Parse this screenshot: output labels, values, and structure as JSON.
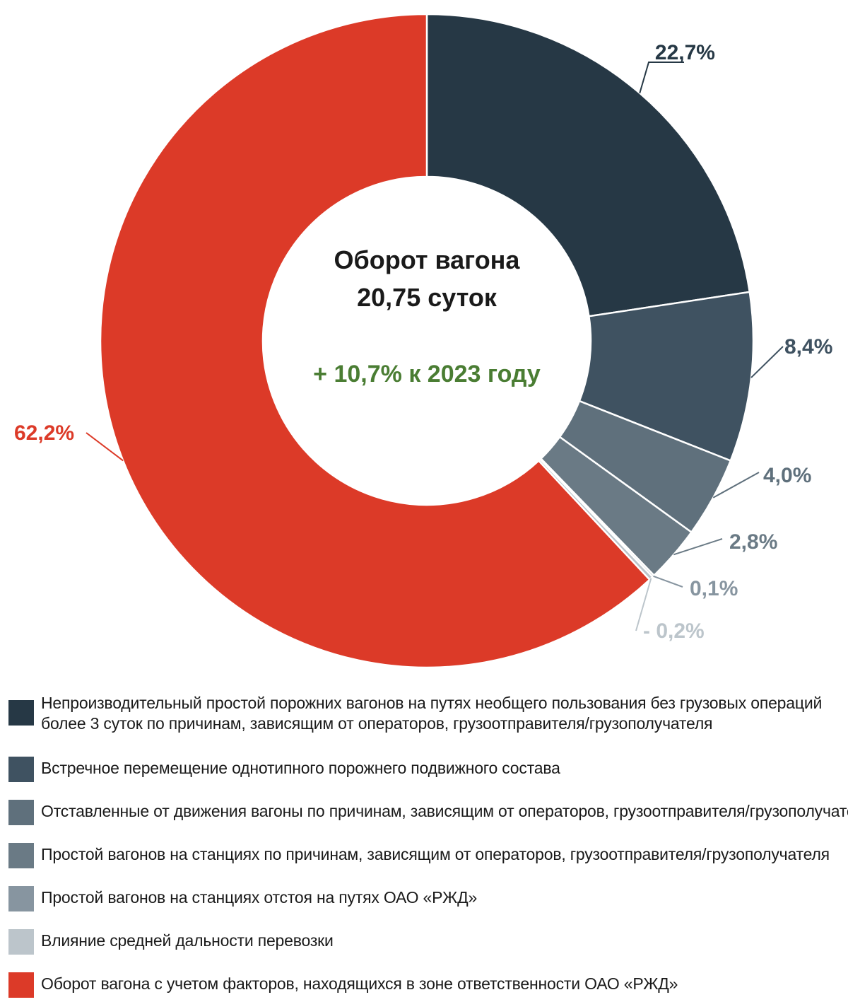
{
  "chart_data": {
    "type": "pie",
    "donut": true,
    "center": {
      "line1": "Оборот вагона",
      "line2": "20,75 суток",
      "change": "+ 10,7% к 2023 году",
      "change_color": "#4a7d33"
    },
    "slices": [
      {
        "value": 22.7,
        "label": "22,7%",
        "color": "#263845",
        "label_color": "#263845",
        "legend": "Непроизводительный простой порожних вагонов на путях необщего пользования без грузовых операций более 3 суток по причинам, зависящим от операторов, грузоотправителя/грузополучателя"
      },
      {
        "value": 8.4,
        "label": "8,4%",
        "color": "#3f5261",
        "label_color": "#3f5261",
        "legend": "Встречное перемещение однотипного порожнего подвижного состава"
      },
      {
        "value": 4.0,
        "label": "4,0%",
        "color": "#5f707c",
        "label_color": "#5f707c",
        "legend": "Отставленные от движения вагоны по причинам, зависящим от операторов, грузоотправителя/грузополучателя"
      },
      {
        "value": 2.8,
        "label": "2,8%",
        "color": "#6a7a85",
        "label_color": "#6a7a85",
        "legend": "Простой вагонов на станциях по причинам, зависящим от операторов, грузоотправителя/грузополучателя"
      },
      {
        "value": 0.1,
        "label": "0,1%",
        "color": "#8795a0",
        "label_color": "#8795a0",
        "legend": "Простой вагонов на станциях отстоя на путях ОАО «РЖД»"
      },
      {
        "value": -0.2,
        "label": "- 0,2%",
        "color": "#bcc5cb",
        "label_color": "#bcc5cb",
        "legend": "Влияние средней дальности перевозки"
      },
      {
        "value": 62.2,
        "label": "62,2%",
        "color": "#dc3a28",
        "label_color": "#dc3a28",
        "legend": "Оборот вагона с учетом факторов, находящихся в зоне ответственности ОАО «РЖД»"
      }
    ]
  }
}
